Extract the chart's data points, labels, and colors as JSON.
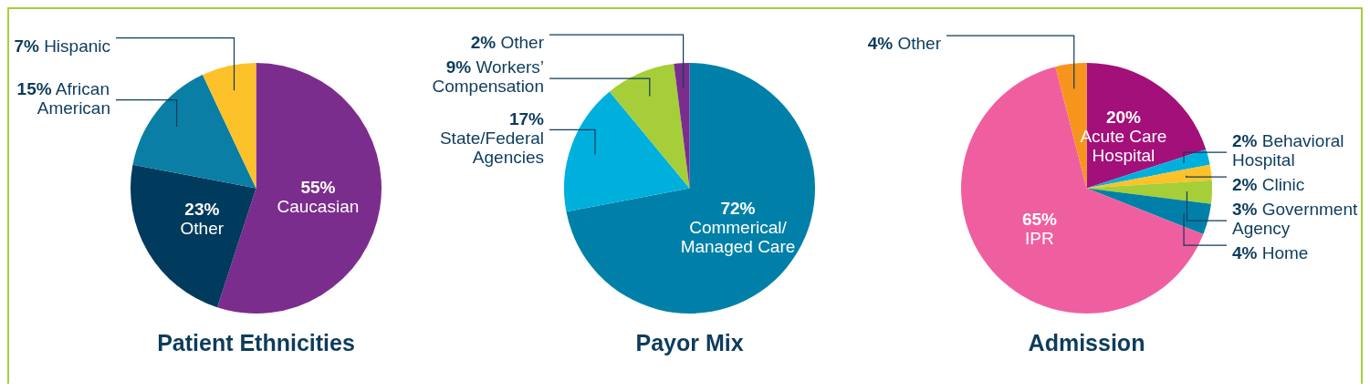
{
  "chart_data": [
    {
      "type": "pie",
      "title": "Patient Ethnicities",
      "categories": [
        "Caucasian",
        "Other",
        "African American",
        "Hispanic"
      ],
      "values": [
        55,
        23,
        15,
        7
      ],
      "value_labels": [
        "55%",
        "23%",
        "15%",
        "7%"
      ],
      "colors": [
        "#7b2d8e",
        "#003a5d",
        "#0a7ea4",
        "#fdc22a"
      ]
    },
    {
      "type": "pie",
      "title": "Payor Mix",
      "categories": [
        "Commerical/ Managed Care",
        "State/Federal Agencies",
        "Workers’ Compensation",
        "Other"
      ],
      "values": [
        72,
        17,
        9,
        2
      ],
      "value_labels": [
        "72%",
        "17%",
        "9%",
        "2%"
      ],
      "colors": [
        "#0080a8",
        "#00b0dc",
        "#a6ce39",
        "#7b2d8e"
      ]
    },
    {
      "type": "pie",
      "title": "Admission",
      "categories": [
        "Acute Care Hospital",
        "Behavioral Hospital",
        "Clinic",
        "Government Agency",
        "Home",
        "IPR",
        "Other"
      ],
      "values": [
        20,
        2,
        2,
        3,
        4,
        65,
        4
      ],
      "value_labels": [
        "20%",
        "2%",
        "2%",
        "3%",
        "4%",
        "65%",
        "4%"
      ],
      "colors": [
        "#a3107a",
        "#00b0dc",
        "#fdc22a",
        "#a6ce39",
        "#0080a8",
        "#ef5f9f",
        "#f7941d"
      ]
    }
  ]
}
